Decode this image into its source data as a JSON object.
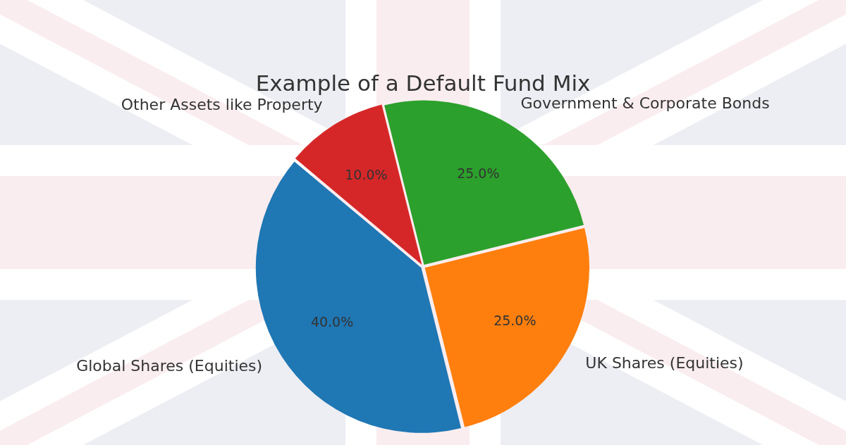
{
  "chart_data": {
    "type": "pie",
    "title": "Example of a Default Fund Mix",
    "categories": [
      "Global Shares (Equities)",
      "UK Shares (Equities)",
      "Government & Corporate Bonds",
      "Other Assets like Property"
    ],
    "values": [
      40,
      25,
      25,
      10
    ],
    "colors": [
      "#1f77b4",
      "#ff7f0e",
      "#2ca02c",
      "#d62728"
    ],
    "value_labels": [
      "40.0%",
      "25.0%",
      "25.0%",
      "10.0%"
    ],
    "legend": false
  }
}
